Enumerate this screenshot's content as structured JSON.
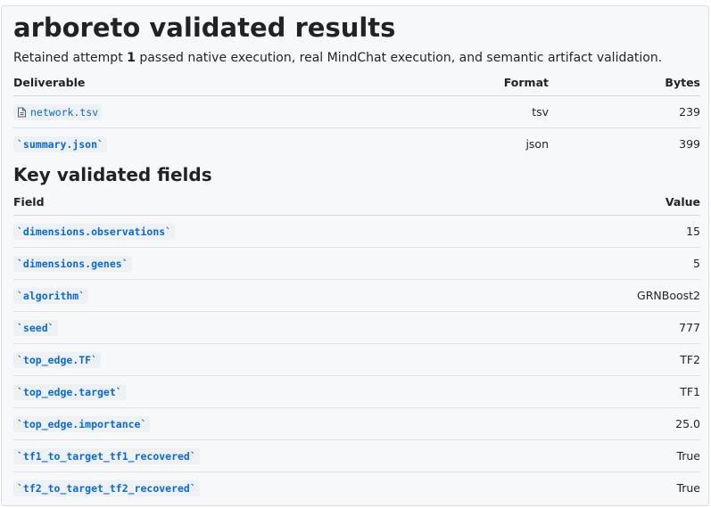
{
  "header": {
    "title": "arboreto validated results",
    "summary": [
      "Retained attempt ",
      "1",
      " passed native execution, real MindChat execution, and semantic artifact validation."
    ]
  },
  "deliverables": {
    "columns": [
      "Deliverable",
      "Format",
      "Bytes"
    ],
    "rows": [
      [
        "network.tsv",
        "tsv",
        239
      ],
      [
        "`summary.json`",
        "json",
        399
      ]
    ]
  },
  "fields": {
    "title": "Key validated fields",
    "columns": [
      "Field",
      "Value"
    ],
    "rows": [
      [
        "`dimensions.observations`",
        15
      ],
      [
        "`dimensions.genes`",
        5
      ],
      [
        "`algorithm`",
        "GRNBoost2"
      ],
      [
        "`seed`",
        777
      ],
      [
        "`top_edge.TF`",
        "TF2"
      ],
      [
        "`top_edge.target`",
        "TF1"
      ],
      [
        "`top_edge.importance`",
        "25.0"
      ],
      [
        "`tf1_to_target_tf1_recovered`",
        "True"
      ],
      [
        "`tf2_to_target_tf2_recovered`",
        "True"
      ]
    ]
  }
}
